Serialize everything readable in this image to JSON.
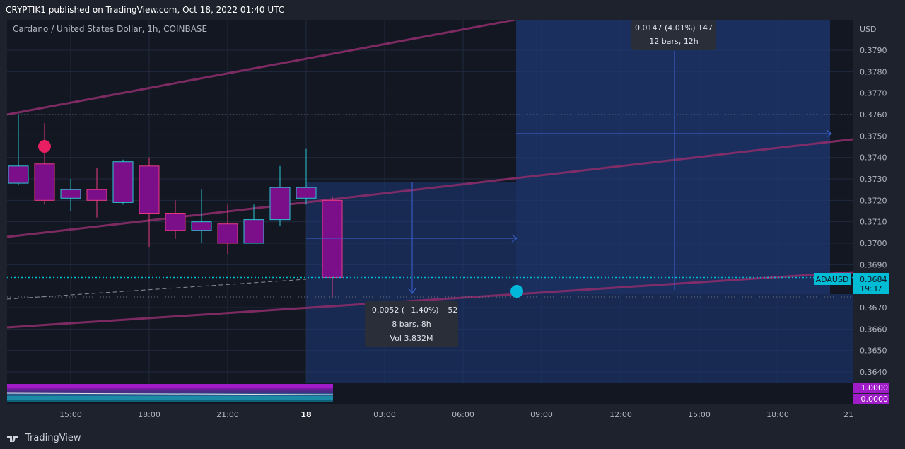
{
  "header": {
    "publisher": "CRYPTIK1 published on TradingView.com, Oct 18, 2022 01:40 UTC"
  },
  "symbol": {
    "title": "Cardano / United States Dollar, 1h, COINBASE",
    "ticker": "ADAUSD",
    "countdown": "19:37"
  },
  "footer": {
    "brand": "TradingView"
  },
  "colors": {
    "background": "#131722",
    "candle_fill": "#7b0f8a",
    "candle_border_up": "#2bc5d6",
    "candle_border_down": "#e83b82",
    "zone_fill": "#1e3a78",
    "trendline": "#8a2d6a",
    "price_line": "#00bcd4",
    "indicator": "#a01cc8"
  },
  "chart_data": {
    "type": "candlestick",
    "title": "Cardano / United States Dollar, 1h, COINBASE",
    "currency_label": "USD",
    "y_ticks": [
      "0.3790",
      "0.3780",
      "0.3770",
      "0.3760",
      "0.3750",
      "0.3740",
      "0.3730",
      "0.3720",
      "0.3710",
      "0.3700",
      "0.3690",
      "0.3680",
      "0.3670",
      "0.3660",
      "0.3650",
      "0.3640"
    ],
    "ylim": [
      0.3635,
      0.3802
    ],
    "x_ticks": [
      "15:00",
      "18:00",
      "21:00",
      "18",
      "03:00",
      "06:00",
      "09:00",
      "12:00",
      "15:00",
      "18:00",
      "21"
    ],
    "candles": [
      {
        "time": "Oct 17 13:00",
        "open": 0.3728,
        "high": 0.376,
        "low": 0.3727,
        "close": 0.3736
      },
      {
        "time": "Oct 17 14:00",
        "open": 0.3737,
        "high": 0.3756,
        "low": 0.3718,
        "close": 0.372
      },
      {
        "time": "Oct 17 15:00",
        "open": 0.3721,
        "high": 0.373,
        "low": 0.3715,
        "close": 0.3725
      },
      {
        "time": "Oct 17 16:00",
        "open": 0.3725,
        "high": 0.3735,
        "low": 0.3712,
        "close": 0.372
      },
      {
        "time": "Oct 17 17:00",
        "open": 0.3719,
        "high": 0.3739,
        "low": 0.3718,
        "close": 0.3738
      },
      {
        "time": "Oct 17 18:00",
        "open": 0.3736,
        "high": 0.374,
        "low": 0.3698,
        "close": 0.3714
      },
      {
        "time": "Oct 17 19:00",
        "open": 0.3714,
        "high": 0.372,
        "low": 0.3702,
        "close": 0.3706
      },
      {
        "time": "Oct 17 20:00",
        "open": 0.3706,
        "high": 0.3725,
        "low": 0.37,
        "close": 0.371
      },
      {
        "time": "Oct 17 21:00",
        "open": 0.3709,
        "high": 0.3718,
        "low": 0.3695,
        "close": 0.37
      },
      {
        "time": "Oct 17 22:00",
        "open": 0.37,
        "high": 0.3718,
        "low": 0.37,
        "close": 0.3711
      },
      {
        "time": "Oct 17 23:00",
        "open": 0.3711,
        "high": 0.3736,
        "low": 0.3708,
        "close": 0.3726
      },
      {
        "time": "Oct 18 00:00",
        "open": 0.3721,
        "high": 0.3744,
        "low": 0.3718,
        "close": 0.3726
      },
      {
        "time": "Oct 18 01:00",
        "open": 0.372,
        "high": 0.3722,
        "low": 0.3675,
        "close": 0.3684
      }
    ],
    "current_price": "0.3684",
    "measure_short": {
      "line1": "−0.0052 (−1.40%) −52",
      "line2": "8 bars, 8h",
      "line3": "Vol 3.832M"
    },
    "measure_long": {
      "line1": "0.0147 (4.01%) 147",
      "line2": "12 bars, 12h"
    },
    "indicator_labels": [
      "1.0000",
      "0.0000"
    ],
    "grid": true
  }
}
